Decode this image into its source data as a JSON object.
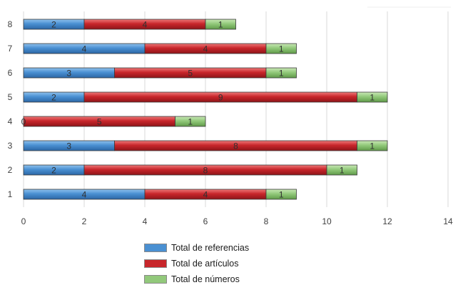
{
  "chart_data": {
    "type": "bar",
    "orientation": "horizontal",
    "stacked": true,
    "categories": [
      "1",
      "2",
      "3",
      "4",
      "5",
      "6",
      "7",
      "8"
    ],
    "series": [
      {
        "name": "Total de referencias",
        "color": "#4a90d2",
        "values": [
          4,
          2,
          3,
          0,
          2,
          3,
          4,
          2
        ]
      },
      {
        "name": "Total de artículos",
        "color": "#c8262b",
        "values": [
          4,
          8,
          8,
          5,
          9,
          5,
          4,
          4
        ]
      },
      {
        "name": "Total de números",
        "color": "#92c97b",
        "values": [
          1,
          1,
          1,
          1,
          1,
          1,
          1,
          1
        ]
      }
    ],
    "xticks": [
      "0",
      "2",
      "4",
      "6",
      "8",
      "10",
      "12",
      "14"
    ],
    "xlim": [
      0,
      14
    ],
    "grid": true,
    "legend_position": "bottom"
  }
}
